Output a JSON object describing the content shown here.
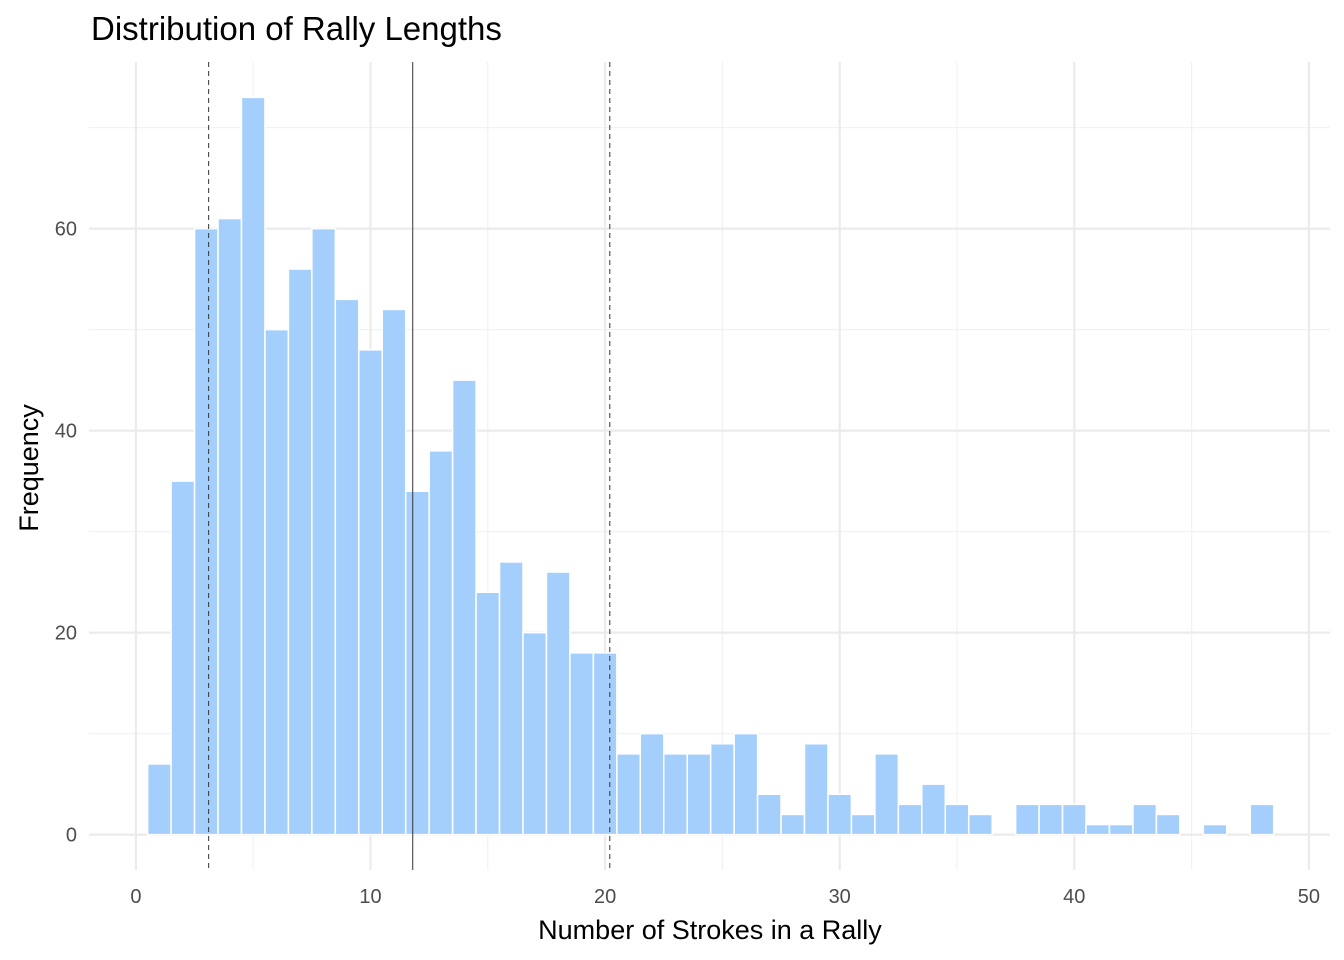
{
  "chart_data": {
    "type": "bar",
    "title": "Distribution of Rally Lengths",
    "xlabel": "Number of Strokes in a Rally",
    "ylabel": "Frequency",
    "xlim": [
      -2,
      50.9
    ],
    "ylim": [
      -3.5,
      76.5
    ],
    "x_ticks": [
      0,
      10,
      20,
      30,
      40,
      50
    ],
    "y_ticks": [
      0,
      20,
      40,
      60
    ],
    "x_tick_labels": [
      "0",
      "10",
      "20",
      "30",
      "40",
      "50"
    ],
    "y_tick_labels": [
      "0",
      "20",
      "40",
      "60"
    ],
    "bin_width": 1,
    "x": [
      1,
      2,
      3,
      4,
      5,
      6,
      7,
      8,
      9,
      10,
      11,
      12,
      13,
      14,
      15,
      16,
      17,
      18,
      19,
      20,
      21,
      22,
      23,
      24,
      25,
      26,
      27,
      28,
      29,
      30,
      31,
      32,
      33,
      34,
      35,
      36,
      37,
      38,
      39,
      40,
      41,
      42,
      43,
      44,
      45,
      46,
      47,
      48
    ],
    "values": [
      7,
      35,
      60,
      61,
      73,
      50,
      56,
      60,
      53,
      48,
      52,
      34,
      38,
      45,
      24,
      27,
      20,
      26,
      18,
      18,
      8,
      10,
      8,
      8,
      9,
      10,
      4,
      2,
      9,
      4,
      2,
      8,
      3,
      5,
      3,
      2,
      0,
      3,
      3,
      3,
      1,
      1,
      3,
      2,
      0,
      1,
      0,
      3
    ],
    "reference_lines": [
      {
        "x": 3.1,
        "style": "dashed"
      },
      {
        "x": 11.8,
        "style": "solid"
      },
      {
        "x": 20.2,
        "style": "dashed"
      }
    ],
    "grid": true,
    "colors": {
      "bar": "#a4cffc",
      "bar_outline": "#ffffff",
      "reference_line": "#333333"
    }
  }
}
